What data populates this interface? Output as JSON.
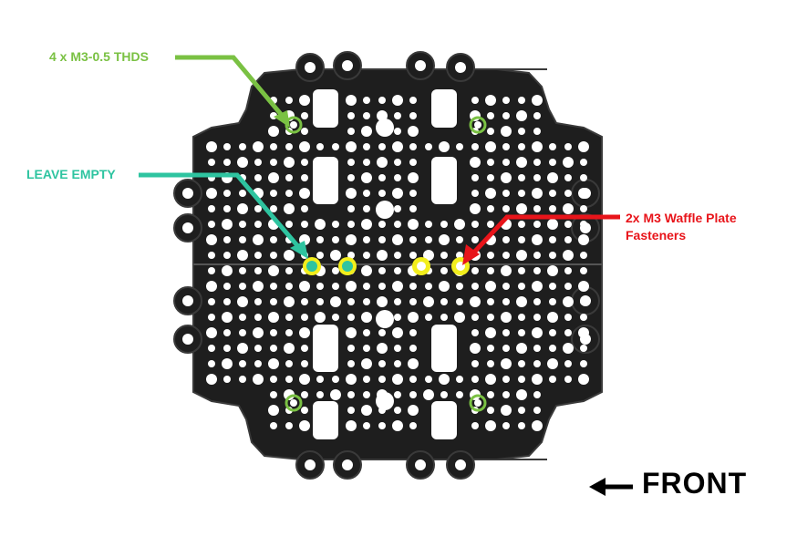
{
  "labels": {
    "threads": "4 x M3-0.5 THDS",
    "leave_empty": "LEAVE EMPTY",
    "fasteners_line1": "2x M3 Waffle Plate",
    "fasteners_line2": "Fasteners",
    "front": "FRONT"
  },
  "colors": {
    "plate": "#1e1e1e",
    "plate_edge": "#3a3a3a",
    "hole": "#ffffff",
    "threads": "#7ac143",
    "leave_empty": "#2ec4a0",
    "fasteners": "#e8141a",
    "yellow_ring": "#f2ee1c",
    "front_arrow": "#000000"
  }
}
